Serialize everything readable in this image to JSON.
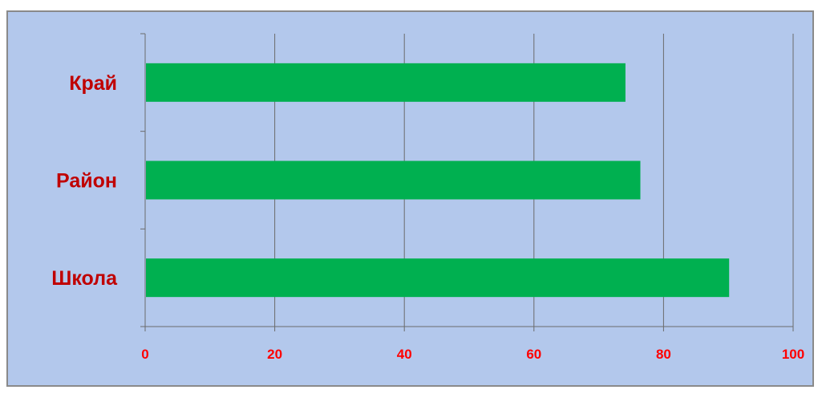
{
  "chart_data": {
    "type": "bar",
    "orientation": "horizontal",
    "categories": [
      "Край",
      "Район",
      "Школа"
    ],
    "values": [
      74,
      76.3,
      90
    ],
    "xlim": [
      0,
      100
    ],
    "x_ticks": [
      "0",
      "20",
      "40",
      "60",
      "80",
      "100"
    ],
    "title": "",
    "xlabel": "",
    "ylabel": "",
    "grid": "vertical",
    "legend": "none",
    "colors": {
      "bar": "#00b050",
      "background": "#b3c8ec",
      "grid": "#6b6b6b",
      "category_label": "#c00000",
      "tick_label": "#ff0000"
    }
  }
}
